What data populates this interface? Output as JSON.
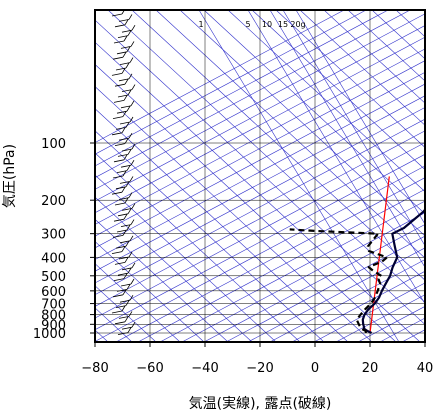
{
  "chart_data": {
    "type": "line",
    "subtype": "skew-T log-p diagram",
    "title": "",
    "xlabel": "気温(実線), 露点(破線)",
    "ylabel": "気圧(hPa)",
    "x_ticks": [
      "−80",
      "−60",
      "−40",
      "−20",
      "0",
      "20",
      "40"
    ],
    "x_tick_values": [
      -80,
      -60,
      -40,
      -20,
      0,
      20,
      40
    ],
    "y_ticks": [
      "100",
      "200",
      "300",
      "400",
      "500",
      "600",
      "700",
      "800",
      "900",
      "1000"
    ],
    "y_tick_values": [
      100,
      200,
      300,
      400,
      500,
      600,
      700,
      800,
      900,
      1000
    ],
    "xlim": [
      -80,
      40
    ],
    "ylim": [
      1050,
      100
    ],
    "y_scale": "log",
    "grid": true,
    "mixing_ratio_labels": [
      "1",
      "5",
      "10",
      "15",
      "20g"
    ],
    "colors": {
      "temperature": "#000033",
      "dewpoint": "#000000",
      "reference": "#ff0000",
      "guides": "#3333cc",
      "grid": "#000000"
    },
    "series": [
      {
        "key": "temperature",
        "style": "solid",
        "points": [
          [
            1000,
            20.6
          ],
          [
            975,
            17.6
          ],
          [
            950,
            15.0
          ],
          [
            925,
            13.4
          ],
          [
            900,
            11.6
          ],
          [
            850,
            8.2
          ],
          [
            800,
            5.4
          ],
          [
            750,
            3.2
          ],
          [
            700,
            1.6
          ],
          [
            650,
            -1.0
          ],
          [
            600,
            -4.5
          ],
          [
            550,
            -8.0
          ],
          [
            500,
            -11.8
          ],
          [
            450,
            -16.8
          ],
          [
            400,
            -21.8
          ],
          [
            350,
            -30.2
          ],
          [
            300,
            -39.8
          ],
          [
            280,
            -39.5
          ],
          [
            250,
            -41.8
          ],
          [
            230,
            -43.5
          ],
          [
            200,
            -48.0
          ],
          [
            180,
            -53.0
          ],
          [
            170,
            -55.5
          ],
          [
            150,
            -57.5
          ],
          [
            140,
            -61.0
          ],
          [
            130,
            -60.3
          ],
          [
            120,
            -58.0
          ],
          [
            110,
            -58.5
          ],
          [
            100,
            -60.0
          ]
        ]
      },
      {
        "key": "dewpoint",
        "style": "dashed",
        "points": [
          [
            1000,
            18.5
          ],
          [
            975,
            17.0
          ],
          [
            950,
            14.0
          ],
          [
            925,
            12.0
          ],
          [
            900,
            10.0
          ],
          [
            850,
            6.0
          ],
          [
            800,
            4.0
          ],
          [
            750,
            2.0
          ],
          [
            700,
            0.2
          ],
          [
            650,
            -2.5
          ],
          [
            600,
            -6.0
          ],
          [
            550,
            -10.0
          ],
          [
            520,
            -13.8
          ],
          [
            500,
            -15.0
          ],
          [
            470,
            -21.5
          ],
          [
            450,
            -25.5
          ],
          [
            420,
            -24.5
          ],
          [
            400,
            -25.5
          ],
          [
            370,
            -36.5
          ],
          [
            350,
            -40.0
          ],
          [
            300,
            -45.0
          ],
          [
            290,
            -70.0
          ],
          [
            285,
            -80.0
          ]
        ]
      }
    ],
    "reference_line": {
      "key": "reference",
      "points": [
        [
          1000,
          20
        ],
        [
          150,
          -80
        ]
      ]
    },
    "wind_barbs": true
  }
}
